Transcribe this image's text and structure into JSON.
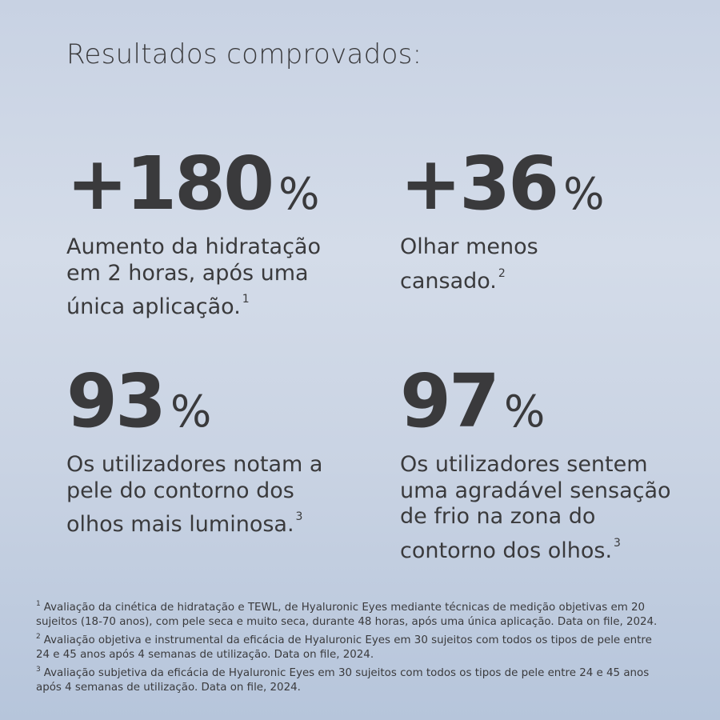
{
  "title": "Resultados comprovados:",
  "stats": [
    {
      "value": "+180",
      "unit": "%",
      "lines": [
        "Aumento da hidratação",
        "em 2 horas, após uma",
        "única aplicação."
      ],
      "note": "1"
    },
    {
      "value": "+36",
      "unit": "%",
      "lines": [
        "Olhar menos",
        "cansado."
      ],
      "note": "2"
    },
    {
      "value": "93",
      "unit": "%",
      "lines": [
        "Os utilizadores notam a",
        "pele do contorno dos",
        "olhos mais luminosa."
      ],
      "note": "3"
    },
    {
      "value": "97",
      "unit": "%",
      "lines": [
        "Os utilizadores sentem",
        "uma agradável sensação",
        "de frio na zona do",
        "contorno dos olhos."
      ],
      "note": "3"
    }
  ],
  "footnotes": [
    {
      "mark": "1",
      "lines": [
        "Avaliação da cinética de hidratação e TEWL, de Hyaluronic Eyes mediante técnicas de medição objetivas em 20",
        "sujeitos (18-70 anos), com pele seca e muito seca, durante 48 horas, após uma única aplicação. Data on file, 2024."
      ]
    },
    {
      "mark": "2",
      "lines": [
        "Avaliação objetiva e instrumental da eficácia de Hyaluronic Eyes em 30 sujeitos com todos os tipos de pele entre",
        "24 e 45 anos após 4 semanas de utilização. Data on file, 2024."
      ]
    },
    {
      "mark": "3",
      "lines": [
        "Avaliação subjetiva da eficácia de Hyaluronic Eyes em 30 sujeitos com todos os tipos de pele entre 24 e 45 anos",
        "após 4 semanas de utilização. Data on file, 2024."
      ]
    }
  ]
}
